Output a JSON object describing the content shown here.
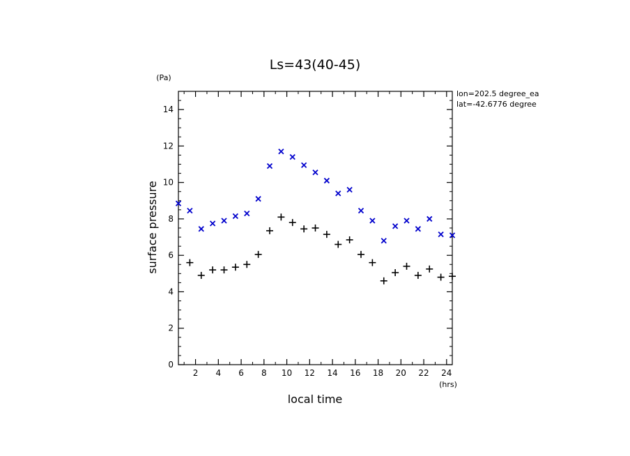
{
  "chart_data": {
    "type": "scatter",
    "title": "Ls=43(40-45)",
    "xlabel": "local time",
    "ylabel": "surface pressure",
    "xunit": "(hrs)",
    "yunit": "(Pa)",
    "annotations": [
      "lon=202.5 degree_ea",
      "lat=-42.6776 degree"
    ],
    "xlim": [
      0.5,
      24.5
    ],
    "ylim": [
      0,
      15
    ],
    "xticks": [
      2,
      4,
      6,
      8,
      10,
      12,
      14,
      16,
      18,
      20,
      22,
      24
    ],
    "yticks": [
      0,
      2,
      4,
      6,
      8,
      10,
      12,
      14
    ],
    "grid": false,
    "x": [
      0.5,
      1.5,
      2.5,
      3.5,
      4.5,
      5.5,
      6.5,
      7.5,
      8.5,
      9.5,
      10.5,
      11.5,
      12.5,
      13.5,
      14.5,
      15.5,
      16.5,
      17.5,
      18.5,
      19.5,
      20.5,
      21.5,
      22.5,
      23.5,
      24.5
    ],
    "series": [
      {
        "marker": "x",
        "color": "#0000cc",
        "values": [
          8.85,
          8.45,
          7.45,
          7.75,
          7.9,
          8.15,
          8.3,
          9.1,
          10.9,
          11.7,
          11.4,
          10.95,
          10.55,
          10.1,
          9.4,
          9.6,
          8.45,
          7.9,
          6.8,
          7.6,
          7.9,
          7.45,
          8.0,
          7.15,
          7.1
        ]
      },
      {
        "marker": "+",
        "color": "#000000",
        "values": [
          null,
          5.6,
          4.9,
          5.2,
          5.2,
          5.35,
          5.5,
          6.05,
          7.35,
          8.1,
          7.8,
          7.45,
          7.5,
          7.15,
          6.6,
          6.85,
          6.05,
          5.6,
          4.6,
          5.05,
          5.4,
          4.9,
          5.25,
          4.8,
          4.85
        ]
      }
    ]
  }
}
